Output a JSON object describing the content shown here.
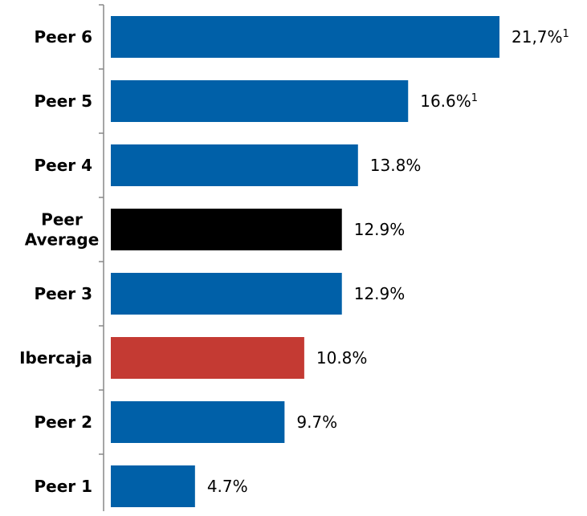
{
  "chart_data": {
    "type": "bar",
    "orientation": "horizontal",
    "categories": [
      "Peer 6",
      "Peer 5",
      "Peer 4",
      "Peer Average",
      "Peer 3",
      "Ibercaja",
      "Peer 2",
      "Peer 1"
    ],
    "category_lines": [
      [
        "Peer 6"
      ],
      [
        "Peer 5"
      ],
      [
        "Peer 4"
      ],
      [
        "Peer",
        "Average"
      ],
      [
        "Peer 3"
      ],
      [
        "Ibercaja"
      ],
      [
        "Peer 2"
      ],
      [
        "Peer 1"
      ]
    ],
    "values": [
      21.7,
      16.6,
      13.8,
      12.9,
      12.9,
      10.8,
      9.7,
      4.7
    ],
    "value_labels": [
      "21,7%",
      "16.6%",
      "13.8%",
      "12.9%",
      "12.9%",
      "10.8%",
      "9.7%",
      "4.7%"
    ],
    "footnote_marks": [
      "1",
      "1",
      "",
      "",
      "",
      "",
      "",
      ""
    ],
    "colors": [
      "#0060A8",
      "#0060A8",
      "#0060A8",
      "#000000",
      "#0060A8",
      "#C43A33",
      "#0060A8",
      "#0060A8"
    ],
    "title": "",
    "xlabel": "",
    "ylabel": "",
    "xlim": [
      0,
      21.7
    ],
    "grid": false,
    "legend": "none"
  }
}
